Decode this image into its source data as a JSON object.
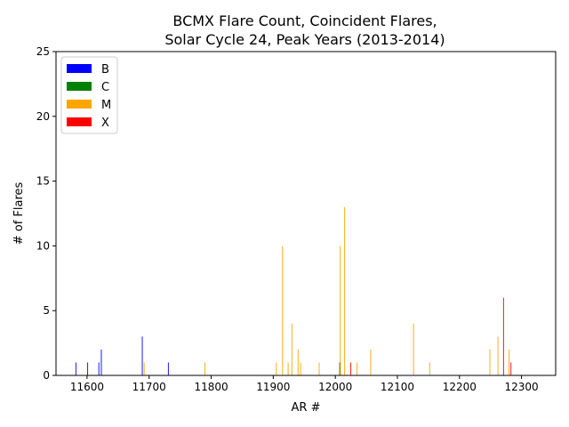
{
  "chart_data": {
    "type": "bar",
    "title": "BCMX Flare Count, Coincident Flares,\nSolar Cycle 24, Peak Years (2013-2014)",
    "xlabel": "AR #",
    "ylabel": "# of Flares",
    "xlim": [
      11550,
      12355
    ],
    "ylim": [
      0,
      25
    ],
    "xticks": [
      11600,
      11700,
      11800,
      11900,
      12000,
      12100,
      12200,
      12300
    ],
    "yticks": [
      0,
      5,
      10,
      15,
      20,
      25
    ],
    "grid": false,
    "legend_position": "top-left",
    "series": [
      {
        "name": "B",
        "color": "#0000ff",
        "points": [
          {
            "x": 11582,
            "y": 1
          },
          {
            "x": 11601,
            "y": 1
          },
          {
            "x": 11619,
            "y": 1
          },
          {
            "x": 11623,
            "y": 2
          },
          {
            "x": 11689,
            "y": 3
          },
          {
            "x": 11731,
            "y": 1
          }
        ]
      },
      {
        "name": "C",
        "color": "#008000",
        "points": [
          {
            "x": 12007,
            "y": 1
          },
          {
            "x": 12008,
            "y": 1
          }
        ]
      },
      {
        "name": "M",
        "color": "#ffa500",
        "points": [
          {
            "x": 11692,
            "y": 1
          },
          {
            "x": 11790,
            "y": 1
          },
          {
            "x": 11905,
            "y": 1
          },
          {
            "x": 11915,
            "y": 10
          },
          {
            "x": 11924,
            "y": 1
          },
          {
            "x": 11930,
            "y": 4
          },
          {
            "x": 11940,
            "y": 2
          },
          {
            "x": 11944,
            "y": 1
          },
          {
            "x": 11974,
            "y": 1
          },
          {
            "x": 12008,
            "y": 10
          },
          {
            "x": 12015,
            "y": 13
          },
          {
            "x": 12035,
            "y": 1
          },
          {
            "x": 12057,
            "y": 2
          },
          {
            "x": 12126,
            "y": 4
          },
          {
            "x": 12152,
            "y": 1
          },
          {
            "x": 12249,
            "y": 2
          },
          {
            "x": 12262,
            "y": 3
          },
          {
            "x": 12280,
            "y": 2
          }
        ]
      },
      {
        "name": "X",
        "color": "#ff0000",
        "points": [
          {
            "x": 12025,
            "y": 1
          },
          {
            "x": 12271,
            "y": 6
          },
          {
            "x": 12283,
            "y": 1
          }
        ]
      }
    ]
  }
}
